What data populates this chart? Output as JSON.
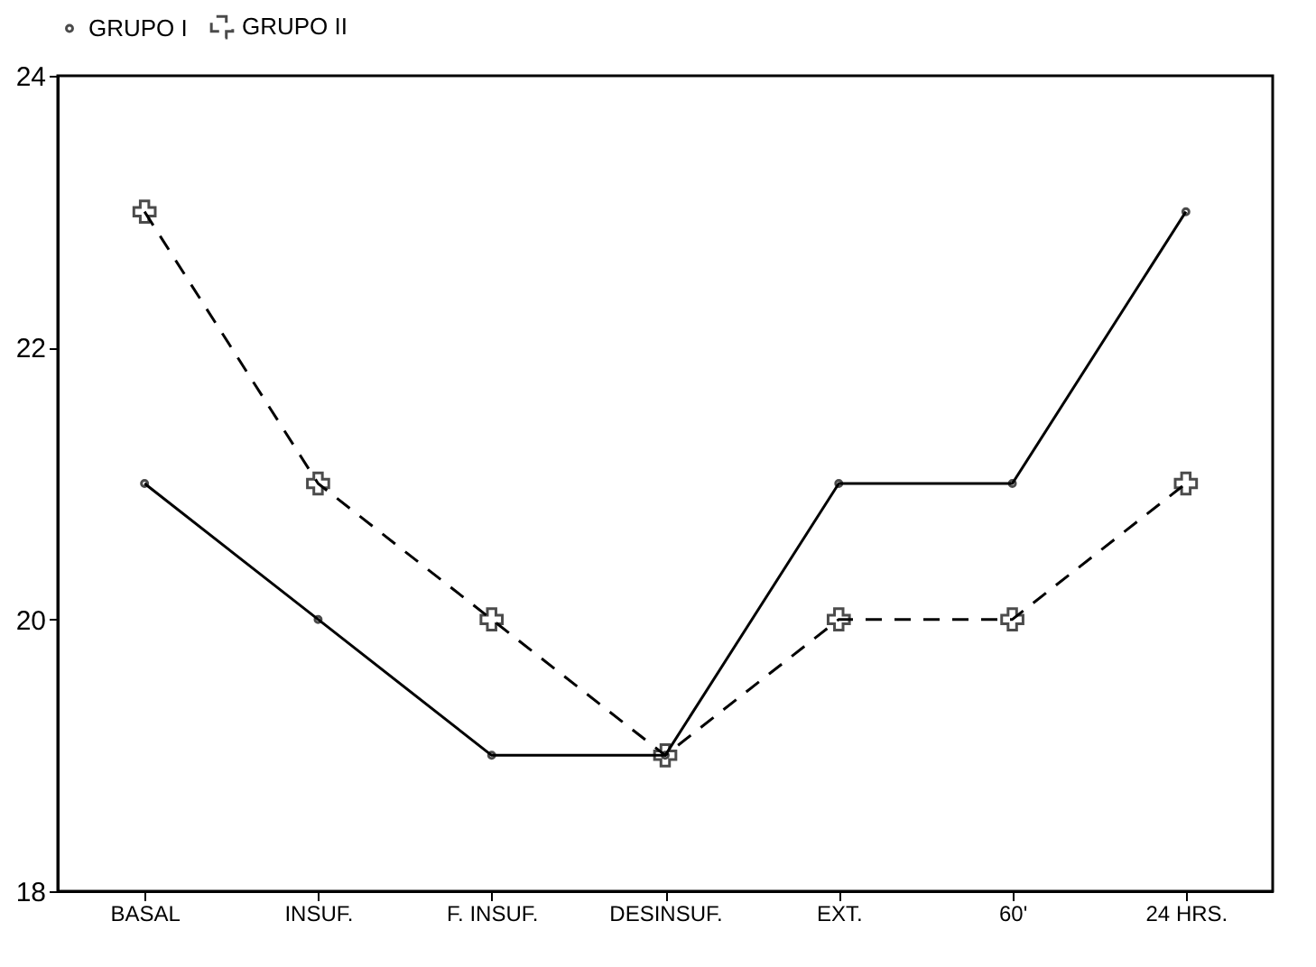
{
  "chart_data": {
    "type": "line",
    "categories": [
      "BASAL",
      "INSUF.",
      "F. INSUF.",
      "DESINSUF.",
      "EXT.",
      "60'",
      "24 HRS."
    ],
    "series": [
      {
        "name": "GRUPO I",
        "color": "#000000",
        "marker": "circle",
        "line_style": "solid",
        "values": [
          21,
          20,
          19,
          19,
          21,
          21,
          23
        ]
      },
      {
        "name": "GRUPO II",
        "color": "#000000",
        "marker": "cross",
        "line_style": "dashed",
        "values": [
          23,
          21,
          20,
          19,
          20,
          20,
          21
        ]
      }
    ],
    "ylim": [
      18,
      24
    ],
    "yticks": [
      18,
      20,
      22,
      24
    ],
    "grid": false,
    "legend": "top"
  }
}
